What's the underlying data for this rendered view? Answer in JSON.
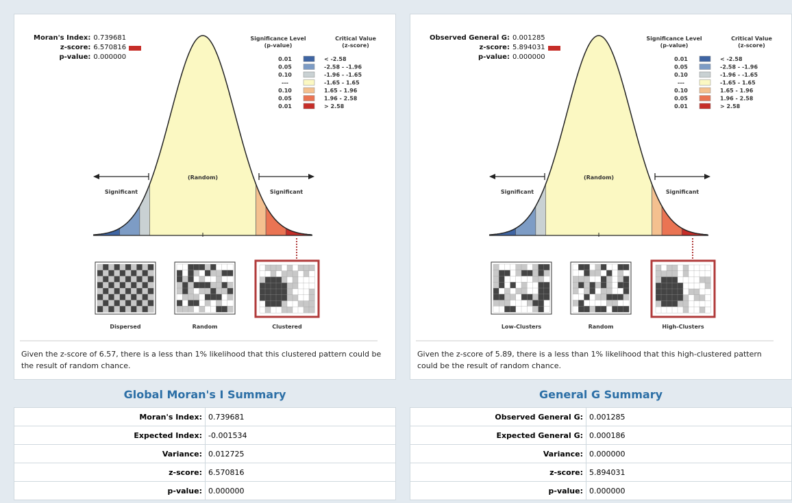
{
  "panels": [
    {
      "stats": [
        {
          "label": "Moran's Index:",
          "value": "0.739681"
        },
        {
          "label": "z-score:",
          "value": "6.570816"
        },
        {
          "label": "p-value:",
          "value": "0.000000"
        }
      ],
      "legend": {
        "p_header": [
          "Significance Level",
          "(p-value)"
        ],
        "z_header": [
          "Critical Value",
          "(z-score)"
        ],
        "rows": [
          {
            "p": "0.01",
            "z": "< -2.58",
            "color": "#3f65a3"
          },
          {
            "p": "0.05",
            "z": "-2.58 - -1.96",
            "color": "#7d9cc5"
          },
          {
            "p": "0.10",
            "z": "-1.96 - -1.65",
            "color": "#c9d1d3"
          },
          {
            "p": "---",
            "z": "-1.65 - 1.65",
            "color": "#fbf8c2"
          },
          {
            "p": "0.10",
            "z": "1.65 - 1.96",
            "color": "#f4c08f"
          },
          {
            "p": "0.05",
            "z": "1.96 - 2.58",
            "color": "#ea7453"
          },
          {
            "p": "0.01",
            "z": "> 2.58",
            "color": "#c62d28"
          }
        ]
      },
      "curve_labels": {
        "left": "Significant",
        "center": "(Random)",
        "right": "Significant"
      },
      "maps": [
        "Dispersed",
        "Random",
        "Clustered"
      ],
      "description": "Given the z-score of 6.57, there is a less than 1% likelihood that this clustered pattern could be the result of random chance.",
      "summary_title": "Global Moran's I Summary",
      "table": [
        [
          "Moran's Index:",
          "0.739681"
        ],
        [
          "Expected Index:",
          "-0.001534"
        ],
        [
          "Variance:",
          "0.012725"
        ],
        [
          "z-score:",
          "6.570816"
        ],
        [
          "p-value:",
          "0.000000"
        ]
      ]
    },
    {
      "stats": [
        {
          "label": "Observed General G:",
          "value": "0.001285"
        },
        {
          "label": "z-score:",
          "value": "5.894031"
        },
        {
          "label": "p-value:",
          "value": "0.000000"
        }
      ],
      "legend": {
        "p_header": [
          "Significance Level",
          "(p-value)"
        ],
        "z_header": [
          "Critical Value",
          "(z-score)"
        ],
        "rows": [
          {
            "p": "0.01",
            "z": "< -2.58",
            "color": "#3f65a3"
          },
          {
            "p": "0.05",
            "z": "-2.58 - -1.96",
            "color": "#7d9cc5"
          },
          {
            "p": "0.10",
            "z": "-1.96 - -1.65",
            "color": "#c9d1d3"
          },
          {
            "p": "---",
            "z": "-1.65 - 1.65",
            "color": "#fbf8c2"
          },
          {
            "p": "0.10",
            "z": "1.65 - 1.96",
            "color": "#f4c08f"
          },
          {
            "p": "0.05",
            "z": "1.96 - 2.58",
            "color": "#ea7453"
          },
          {
            "p": "0.01",
            "z": "> 2.58",
            "color": "#c62d28"
          }
        ]
      },
      "curve_labels": {
        "left": "Significant",
        "center": "(Random)",
        "right": "Significant"
      },
      "maps": [
        "Low-Clusters",
        "Random",
        "High-Clusters"
      ],
      "description": "Given the z-score of 5.89, there is a less than 1% likelihood that this high-clustered pattern could be the result of random chance.",
      "summary_title": "General G Summary",
      "table": [
        [
          "Observed General G:",
          "0.001285"
        ],
        [
          "Expected General G:",
          "0.000186"
        ],
        [
          "Variance:",
          "0.000000"
        ],
        [
          "z-score:",
          "5.894031"
        ],
        [
          "p-value:",
          "0.000000"
        ]
      ]
    }
  ]
}
